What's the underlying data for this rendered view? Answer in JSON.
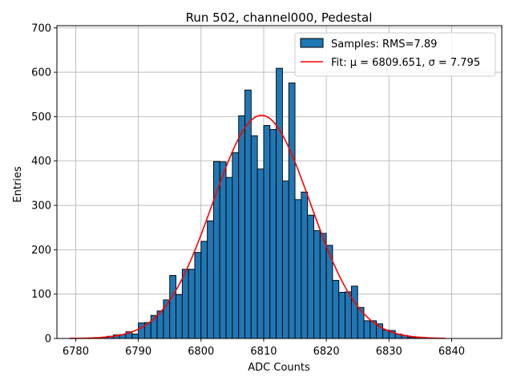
{
  "chart_data": {
    "type": "bar",
    "title": "Run 502, channel000, Pedestal",
    "xlabel": "ADC Counts",
    "ylabel": "Entries",
    "xlim": [
      6777,
      6848
    ],
    "ylim": [
      0,
      705
    ],
    "xticks": [
      6780,
      6790,
      6800,
      6810,
      6820,
      6830,
      6840
    ],
    "yticks": [
      0,
      100,
      200,
      300,
      400,
      500,
      600,
      700
    ],
    "grid": true,
    "legend_position": "top-right",
    "legend": {
      "histogram_label": "Samples: RMS=7.89",
      "fit_label": "Fit: μ = 6809.651, σ = 7.795"
    },
    "histogram": {
      "name": "Samples: RMS=7.89",
      "color": "#1f77b4",
      "edge_color": "#000000",
      "bin_width": 1,
      "bin_starts": [
        6781,
        6782,
        6783,
        6784,
        6785,
        6786,
        6787,
        6788,
        6789,
        6790,
        6791,
        6792,
        6793,
        6794,
        6795,
        6796,
        6797,
        6798,
        6799,
        6800,
        6801,
        6802,
        6803,
        6804,
        6805,
        6806,
        6807,
        6808,
        6809,
        6810,
        6811,
        6812,
        6813,
        6814,
        6815,
        6816,
        6817,
        6818,
        6819,
        6820,
        6821,
        6822,
        6823,
        6824,
        6825,
        6826,
        6827,
        6828,
        6829,
        6830,
        6831,
        6832,
        6833,
        6834,
        6835,
        6836,
        6837
      ],
      "counts": [
        1,
        1,
        2,
        3,
        5,
        8,
        9,
        15,
        10,
        35,
        36,
        52,
        62,
        87,
        142,
        99,
        156,
        156,
        194,
        219,
        265,
        399,
        398,
        363,
        419,
        502,
        560,
        457,
        382,
        480,
        471,
        609,
        355,
        576,
        313,
        330,
        278,
        243,
        237,
        210,
        131,
        104,
        105,
        118,
        70,
        40,
        40,
        33,
        19,
        18,
        10,
        7,
        3,
        2,
        1,
        1,
        1
      ]
    },
    "fit": {
      "name": "Fit: μ = 6809.651, σ = 7.795",
      "color": "#ff0000",
      "mu": 6809.651,
      "sigma": 7.795,
      "amplitude": 503,
      "x_range": [
        6779,
        6839
      ]
    }
  }
}
